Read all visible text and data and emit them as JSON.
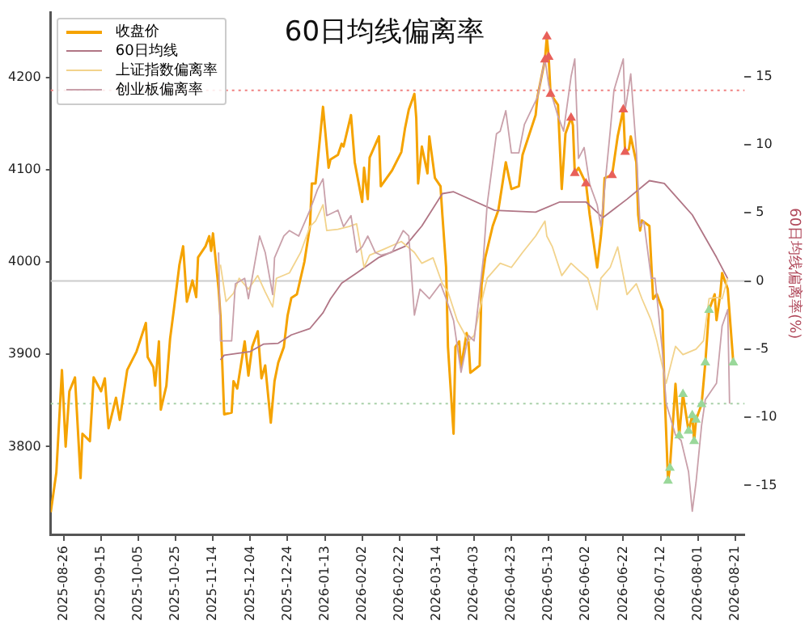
{
  "chart_data": {
    "type": "line",
    "title": "60日均线偏离率",
    "y2label": "60日均线偏离率(%)",
    "xlim": [
      "2025-08-19",
      "2026-08-26"
    ],
    "xticks": [
      "2025-08-26",
      "2025-09-15",
      "2025-10-05",
      "2025-10-25",
      "2025-11-14",
      "2025-12-04",
      "2025-12-24",
      "2026-01-13",
      "2026-02-02",
      "2026-02-22",
      "2026-03-14",
      "2026-04-03",
      "2026-04-23",
      "2026-05-13",
      "2026-06-02",
      "2026-06-22",
      "2026-07-12",
      "2026-08-01",
      "2026-08-21"
    ],
    "ylim": [
      3705,
      4270
    ],
    "yticks": [
      3800,
      3900,
      4000,
      4100,
      4200
    ],
    "y2lim": [
      -18.6,
      19.7
    ],
    "y2ticks": [
      -15,
      -10,
      -5,
      0,
      5,
      10,
      15
    ],
    "grid": false,
    "legend": "top left",
    "ref_lines": [
      {
        "axis": "y2",
        "value": 14,
        "color": "#f08080",
        "line_style": "dotted"
      },
      {
        "axis": "y2",
        "value": -9,
        "color": "#a8d0a8",
        "line_style": "dotted"
      },
      {
        "axis": "y2",
        "value": 0,
        "color": "#cccccc",
        "line_style": "solid"
      }
    ],
    "series": [
      {
        "name": "收盘价",
        "color": "#f5a300",
        "axis": "y",
        "x": [
          "2025-08-19",
          "2025-08-22",
          "2025-08-25",
          "2025-08-27",
          "2025-08-29",
          "2025-09-01",
          "2025-09-04",
          "2025-09-05",
          "2025-09-09",
          "2025-09-11",
          "2025-09-15",
          "2025-09-17",
          "2025-09-19",
          "2025-09-23",
          "2025-09-25",
          "2025-09-29",
          "2025-10-04",
          "2025-10-09",
          "2025-10-10",
          "2025-10-13",
          "2025-10-14",
          "2025-10-16",
          "2025-10-17",
          "2025-10-20",
          "2025-10-22",
          "2025-10-24",
          "2025-10-27",
          "2025-10-29",
          "2025-10-31",
          "2025-11-03",
          "2025-11-05",
          "2025-11-06",
          "2025-11-10",
          "2025-11-12",
          "2025-11-13",
          "2025-11-14",
          "2025-11-17",
          "2025-11-18",
          "2025-11-20",
          "2025-11-24",
          "2025-11-25",
          "2025-11-27",
          "2025-12-01",
          "2025-12-03",
          "2025-12-05",
          "2025-12-08",
          "2025-12-10",
          "2025-12-12",
          "2025-12-15",
          "2025-12-17",
          "2025-12-19",
          "2025-12-22",
          "2025-12-24",
          "2025-12-26",
          "2025-12-29",
          "2026-01-02",
          "2026-01-05",
          "2026-01-06",
          "2026-01-08",
          "2026-01-12",
          "2026-01-15",
          "2026-01-16",
          "2026-01-20",
          "2026-01-22",
          "2026-01-23",
          "2026-01-27",
          "2026-01-29",
          "2026-02-02",
          "2026-02-03",
          "2026-02-05",
          "2026-02-06",
          "2026-02-11",
          "2026-02-12",
          "2026-02-18",
          "2026-02-23",
          "2026-02-25",
          "2026-02-27",
          "2026-03-02",
          "2026-03-03",
          "2026-03-04",
          "2026-03-06",
          "2026-03-09",
          "2026-03-10",
          "2026-03-13",
          "2026-03-16",
          "2026-03-17",
          "2026-03-19",
          "2026-03-20",
          "2026-03-23",
          "2026-03-24",
          "2026-03-26",
          "2026-03-27",
          "2026-03-30",
          "2026-03-31",
          "2026-04-01",
          "2026-04-06",
          "2026-04-07",
          "2026-04-09",
          "2026-04-13",
          "2026-04-16",
          "2026-04-20",
          "2026-04-23",
          "2026-04-27",
          "2026-04-29",
          "2026-05-06",
          "2026-05-07",
          "2026-05-11",
          "2026-05-12",
          "2026-05-13",
          "2026-05-14",
          "2026-05-18",
          "2026-05-20",
          "2026-05-22",
          "2026-05-25",
          "2026-05-26",
          "2026-05-27",
          "2026-05-29",
          "2026-06-02",
          "2026-06-04",
          "2026-06-08",
          "2026-06-10",
          "2026-06-11",
          "2026-06-12",
          "2026-06-16",
          "2026-06-19",
          "2026-06-22",
          "2026-06-23",
          "2026-06-25",
          "2026-06-26",
          "2026-06-29",
          "2026-06-30",
          "2026-07-01",
          "2026-07-02",
          "2026-07-06",
          "2026-07-08",
          "2026-07-10",
          "2026-07-13",
          "2026-07-14",
          "2026-07-16",
          "2026-07-17",
          "2026-07-20",
          "2026-07-22",
          "2026-07-24",
          "2026-07-27",
          "2026-07-29",
          "2026-07-30",
          "2026-07-31",
          "2026-08-03",
          "2026-08-05",
          "2026-08-07",
          "2026-08-10",
          "2026-08-11",
          "2026-08-13",
          "2026-08-14",
          "2026-08-17",
          "2026-08-20"
        ],
        "values": [
          3729,
          3772,
          3883,
          3800,
          3860,
          3875,
          3766,
          3814,
          3806,
          3875,
          3860,
          3874,
          3820,
          3853,
          3829,
          3883,
          3903,
          3934,
          3897,
          3886,
          3866,
          3914,
          3840,
          3866,
          3917,
          3948,
          3997,
          4017,
          3957,
          3980,
          3962,
          4005,
          4017,
          4028,
          4012,
          4031,
          3971,
          3942,
          3835,
          3837,
          3871,
          3863,
          3914,
          3877,
          3908,
          3925,
          3874,
          3888,
          3826,
          3871,
          3891,
          3908,
          3942,
          3961,
          3965,
          4000,
          4039,
          4085,
          4085,
          4168,
          4102,
          4111,
          4116,
          4128,
          4125,
          4159,
          4108,
          4065,
          4102,
          4068,
          4113,
          4136,
          4082,
          4099,
          4119,
          4145,
          4165,
          4182,
          4156,
          4085,
          4125,
          4096,
          4136,
          4091,
          4082,
          4051,
          3994,
          3908,
          3814,
          3908,
          3914,
          3886,
          3923,
          3914,
          3880,
          3888,
          3975,
          4005,
          4039,
          4056,
          4108,
          4079,
          4082,
          4116,
          4159,
          4179,
          4219,
          4244,
          4222,
          4182,
          4170,
          4079,
          4139,
          4156,
          4148,
          4096,
          4102,
          4085,
          4051,
          3994,
          4028,
          4051,
          4091,
          4094,
          4136,
          4165,
          4119,
          4122,
          4136,
          4108,
          4051,
          4034,
          4045,
          4039,
          3960,
          3965,
          3948,
          3868,
          3763,
          3777,
          3868,
          3812,
          3857,
          3817,
          3834,
          3806,
          3829,
          3846,
          3891,
          3948,
          3965,
          3937,
          3965,
          3988,
          3971,
          3891
        ]
      },
      {
        "name": "60日均线",
        "color": "#b07585",
        "axis": "y",
        "x": [
          "2025-11-18",
          "2025-11-20",
          "2025-11-27",
          "2025-12-04",
          "2025-12-11",
          "2025-12-19",
          "2025-12-26",
          "2026-01-05",
          "2026-01-12",
          "2026-01-16",
          "2026-01-22",
          "2026-01-30",
          "2026-02-11",
          "2026-02-25",
          "2026-03-06",
          "2026-03-17",
          "2026-03-23",
          "2026-04-14",
          "2026-05-06",
          "2026-05-19",
          "2026-06-02",
          "2026-06-11",
          "2026-06-24",
          "2026-07-06",
          "2026-07-14",
          "2026-07-29",
          "2026-08-11",
          "2026-08-17"
        ],
        "values": [
          3894,
          3899,
          3901,
          3903,
          3911,
          3912,
          3921,
          3928,
          3945,
          3960,
          3977,
          3988,
          4005,
          4017,
          4039,
          4074,
          4076,
          4056,
          4054,
          4065,
          4065,
          4048,
          4068,
          4088,
          4085,
          4051,
          4005,
          3982
        ]
      },
      {
        "name": "上证指数偏离率",
        "color": "#f2d38c",
        "axis": "y2",
        "x": [
          "2025-11-18",
          "2025-11-21",
          "2025-11-25",
          "2025-11-28",
          "2025-12-03",
          "2025-12-08",
          "2025-12-12",
          "2025-12-16",
          "2025-12-18",
          "2025-12-25",
          "2025-12-31",
          "2026-01-05",
          "2026-01-08",
          "2026-01-12",
          "2026-01-14",
          "2026-01-20",
          "2026-01-26",
          "2026-01-30",
          "2026-02-03",
          "2026-02-06",
          "2026-02-13",
          "2026-02-23",
          "2026-03-02",
          "2026-03-06",
          "2026-03-12",
          "2026-03-17",
          "2026-03-20",
          "2026-03-25",
          "2026-03-31",
          "2026-04-03",
          "2026-04-06",
          "2026-04-10",
          "2026-04-17",
          "2026-04-23",
          "2026-04-29",
          "2026-05-06",
          "2026-05-11",
          "2026-05-12",
          "2026-05-15",
          "2026-05-20",
          "2026-05-25",
          "2026-05-29",
          "2026-06-03",
          "2026-06-08",
          "2026-06-10",
          "2026-06-15",
          "2026-06-19",
          "2026-06-24",
          "2026-06-29",
          "2026-07-02",
          "2026-07-07",
          "2026-07-10",
          "2026-07-15",
          "2026-07-20",
          "2026-07-24",
          "2026-07-31",
          "2026-08-04",
          "2026-08-07",
          "2026-08-11",
          "2026-08-14",
          "2026-08-17"
        ],
        "values": [
          1.2,
          -1.5,
          -0.9,
          0.2,
          -0.6,
          0.4,
          -0.8,
          -1.9,
          0.2,
          0.6,
          2.1,
          4.0,
          4.4,
          5.6,
          3.7,
          3.8,
          4.0,
          4.2,
          1.0,
          1.9,
          2.3,
          2.9,
          2.1,
          1.3,
          1.7,
          -0.2,
          -0.8,
          -2.9,
          -4.4,
          -4.0,
          -2.1,
          0.2,
          1.3,
          1.0,
          2.1,
          3.3,
          4.4,
          3.3,
          2.5,
          0.4,
          1.3,
          0.8,
          0.2,
          -2.1,
          0.2,
          1.0,
          2.5,
          -1.0,
          -0.2,
          -1.3,
          -2.9,
          -4.4,
          -7.5,
          -4.8,
          -5.4,
          -5.0,
          -4.4,
          -1.3,
          -1.2,
          -1.3,
          0.2
        ]
      },
      {
        "name": "创业板偏离率",
        "color": "#c9a0aa",
        "axis": "y2",
        "x": [
          "2025-11-17",
          "2025-11-18",
          "2025-11-24",
          "2025-11-26",
          "2025-12-01",
          "2025-12-03",
          "2025-12-09",
          "2025-12-12",
          "2025-12-16",
          "2025-12-17",
          "2025-12-22",
          "2025-12-25",
          "2025-12-30",
          "2026-01-05",
          "2026-01-09",
          "2026-01-12",
          "2026-01-14",
          "2026-01-20",
          "2026-01-23",
          "2026-01-27",
          "2026-01-30",
          "2026-02-02",
          "2026-02-05",
          "2026-02-09",
          "2026-02-12",
          "2026-02-18",
          "2026-02-24",
          "2026-02-27",
          "2026-03-02",
          "2026-03-05",
          "2026-03-10",
          "2026-03-16",
          "2026-03-19",
          "2026-03-23",
          "2026-03-27",
          "2026-03-31",
          "2026-04-03",
          "2026-04-08",
          "2026-04-10",
          "2026-04-15",
          "2026-04-17",
          "2026-04-20",
          "2026-04-23",
          "2026-04-27",
          "2026-04-30",
          "2026-05-07",
          "2026-05-11",
          "2026-05-13",
          "2026-05-18",
          "2026-05-21",
          "2026-05-25",
          "2026-05-27",
          "2026-05-29",
          "2026-06-01",
          "2026-06-04",
          "2026-06-08",
          "2026-06-10",
          "2026-06-15",
          "2026-06-17",
          "2026-06-22",
          "2026-06-23",
          "2026-06-26",
          "2026-06-29",
          "2026-07-01",
          "2026-07-03",
          "2026-07-07",
          "2026-07-09",
          "2026-07-13",
          "2026-07-15",
          "2026-07-20",
          "2026-07-23",
          "2026-07-27",
          "2026-07-29",
          "2026-07-31",
          "2026-08-03",
          "2026-08-05",
          "2026-08-07",
          "2026-08-11",
          "2026-08-14",
          "2026-08-17",
          "2026-08-18"
        ],
        "values": [
          2.1,
          -4.4,
          -4.4,
          -0.2,
          0.2,
          -1.3,
          3.3,
          2.1,
          -1.0,
          1.7,
          3.3,
          3.7,
          3.3,
          5.2,
          6.7,
          7.5,
          4.8,
          5.2,
          4.0,
          4.8,
          2.1,
          2.5,
          3.3,
          2.1,
          1.9,
          2.1,
          3.7,
          3.3,
          -2.5,
          -0.6,
          -1.3,
          -0.2,
          -1.3,
          -2.9,
          -6.7,
          -4.0,
          -4.4,
          1.7,
          5.6,
          10.8,
          11.0,
          12.5,
          9.4,
          9.4,
          11.5,
          13.5,
          16.3,
          14.4,
          12.1,
          11.0,
          15.0,
          16.3,
          9.0,
          9.8,
          7.1,
          5.6,
          4.0,
          11.0,
          14.0,
          16.3,
          12.5,
          15.2,
          9.6,
          4.0,
          4.4,
          0.2,
          0.2,
          -5.2,
          -9.0,
          -11.3,
          -11.7,
          -14.0,
          -16.9,
          -14.8,
          -10.6,
          -8.7,
          -8.3,
          -7.5,
          -3.3,
          -2.1,
          -9.0
        ]
      },
      {
        "type": "scatter",
        "marker": "triangle",
        "color": "#e8605a",
        "axis": "y",
        "x": [
          "2026-05-11",
          "2026-05-12",
          "2026-05-13",
          "2026-05-14",
          "2026-05-25",
          "2026-05-27",
          "2026-06-02",
          "2026-06-16",
          "2026-06-22",
          "2026-06-23"
        ],
        "values": [
          4219,
          4244,
          4222,
          4182,
          4156,
          4096,
          4085,
          4094,
          4165,
          4119
        ]
      },
      {
        "type": "scatter",
        "marker": "triangle",
        "color": "#9ad89a",
        "axis": "y",
        "x": [
          "2026-07-16",
          "2026-07-17",
          "2026-07-22",
          "2026-07-24",
          "2026-07-27",
          "2026-07-29",
          "2026-07-30",
          "2026-07-31",
          "2026-08-03",
          "2026-08-05",
          "2026-08-07",
          "2026-08-20"
        ],
        "values": [
          3763,
          3777,
          3812,
          3857,
          3817,
          3834,
          3806,
          3829,
          3846,
          3891,
          3948,
          3891
        ]
      }
    ]
  }
}
